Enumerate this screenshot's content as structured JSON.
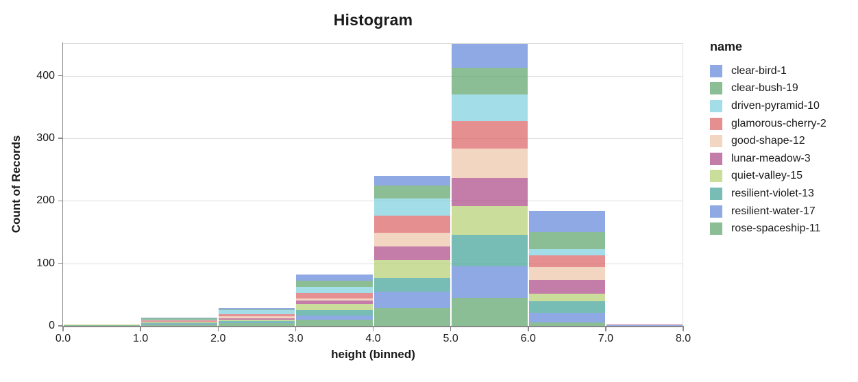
{
  "chart_title": "Histogram",
  "chart_data": {
    "type": "bar",
    "stacked": true,
    "title": "Histogram",
    "xlabel": "height (binned)",
    "ylabel": "Count of Records",
    "legend_title": "name",
    "legend_position": "right",
    "grid": true,
    "xlim": [
      0,
      8
    ],
    "ylim": [
      0,
      452
    ],
    "bin_width": 1,
    "x_tick_labels": [
      "0.0",
      "1.0",
      "2.0",
      "3.0",
      "4.0",
      "5.0",
      "6.0",
      "7.0",
      "8.0"
    ],
    "y_tick_values": [
      0,
      100,
      200,
      300,
      400
    ],
    "bin_edges": [
      0,
      1,
      2,
      3,
      4,
      5,
      6,
      7,
      8
    ],
    "series": [
      {
        "name": "clear-bird-1",
        "color": "#5F84D8",
        "opacity": 0.7,
        "values": [
          0,
          1,
          3,
          10,
          16,
          38,
          34,
          0
        ]
      },
      {
        "name": "clear-bush-19",
        "color": "#5BA268",
        "opacity": 0.7,
        "values": [
          0,
          2,
          1,
          10,
          20,
          43,
          27,
          0
        ]
      },
      {
        "name": "driven-pyramid-10",
        "color": "#7CD0DE",
        "opacity": 0.7,
        "values": [
          0,
          1,
          6,
          9,
          28,
          43,
          10,
          0
        ]
      },
      {
        "name": "glamorous-cherry-2",
        "color": "#DB5F63",
        "opacity": 0.7,
        "values": [
          0,
          2,
          4,
          9,
          27,
          44,
          19,
          0
        ]
      },
      {
        "name": "good-shape-12",
        "color": "#EEC4A6",
        "opacity": 0.7,
        "values": [
          0,
          1,
          3,
          4,
          22,
          47,
          21,
          0
        ]
      },
      {
        "name": "lunar-meadow-3",
        "color": "#AB4583",
        "opacity": 0.7,
        "values": [
          0,
          0,
          2,
          5,
          22,
          44,
          22,
          1
        ]
      },
      {
        "name": "quiet-valley-15",
        "color": "#B3CE70",
        "opacity": 0.7,
        "values": [
          1,
          1,
          2,
          10,
          28,
          46,
          12,
          0
        ]
      },
      {
        "name": "resilient-violet-13",
        "color": "#3EA195",
        "opacity": 0.7,
        "values": [
          0,
          2,
          2,
          9,
          22,
          51,
          18,
          0
        ]
      },
      {
        "name": "resilient-water-17",
        "color": "#5F84D8",
        "opacity": 0.7,
        "values": [
          0,
          1,
          2,
          6,
          27,
          50,
          16,
          1
        ]
      },
      {
        "name": "rose-spaceship-11",
        "color": "#5BA268",
        "opacity": 0.7,
        "values": [
          1,
          2,
          4,
          10,
          28,
          45,
          5,
          0
        ]
      }
    ]
  },
  "colors": {
    "background": "#ffffff",
    "grid": "#dddddd",
    "view_border": "#dddddd",
    "axis": "#888888",
    "text": "#1a1a1a"
  }
}
